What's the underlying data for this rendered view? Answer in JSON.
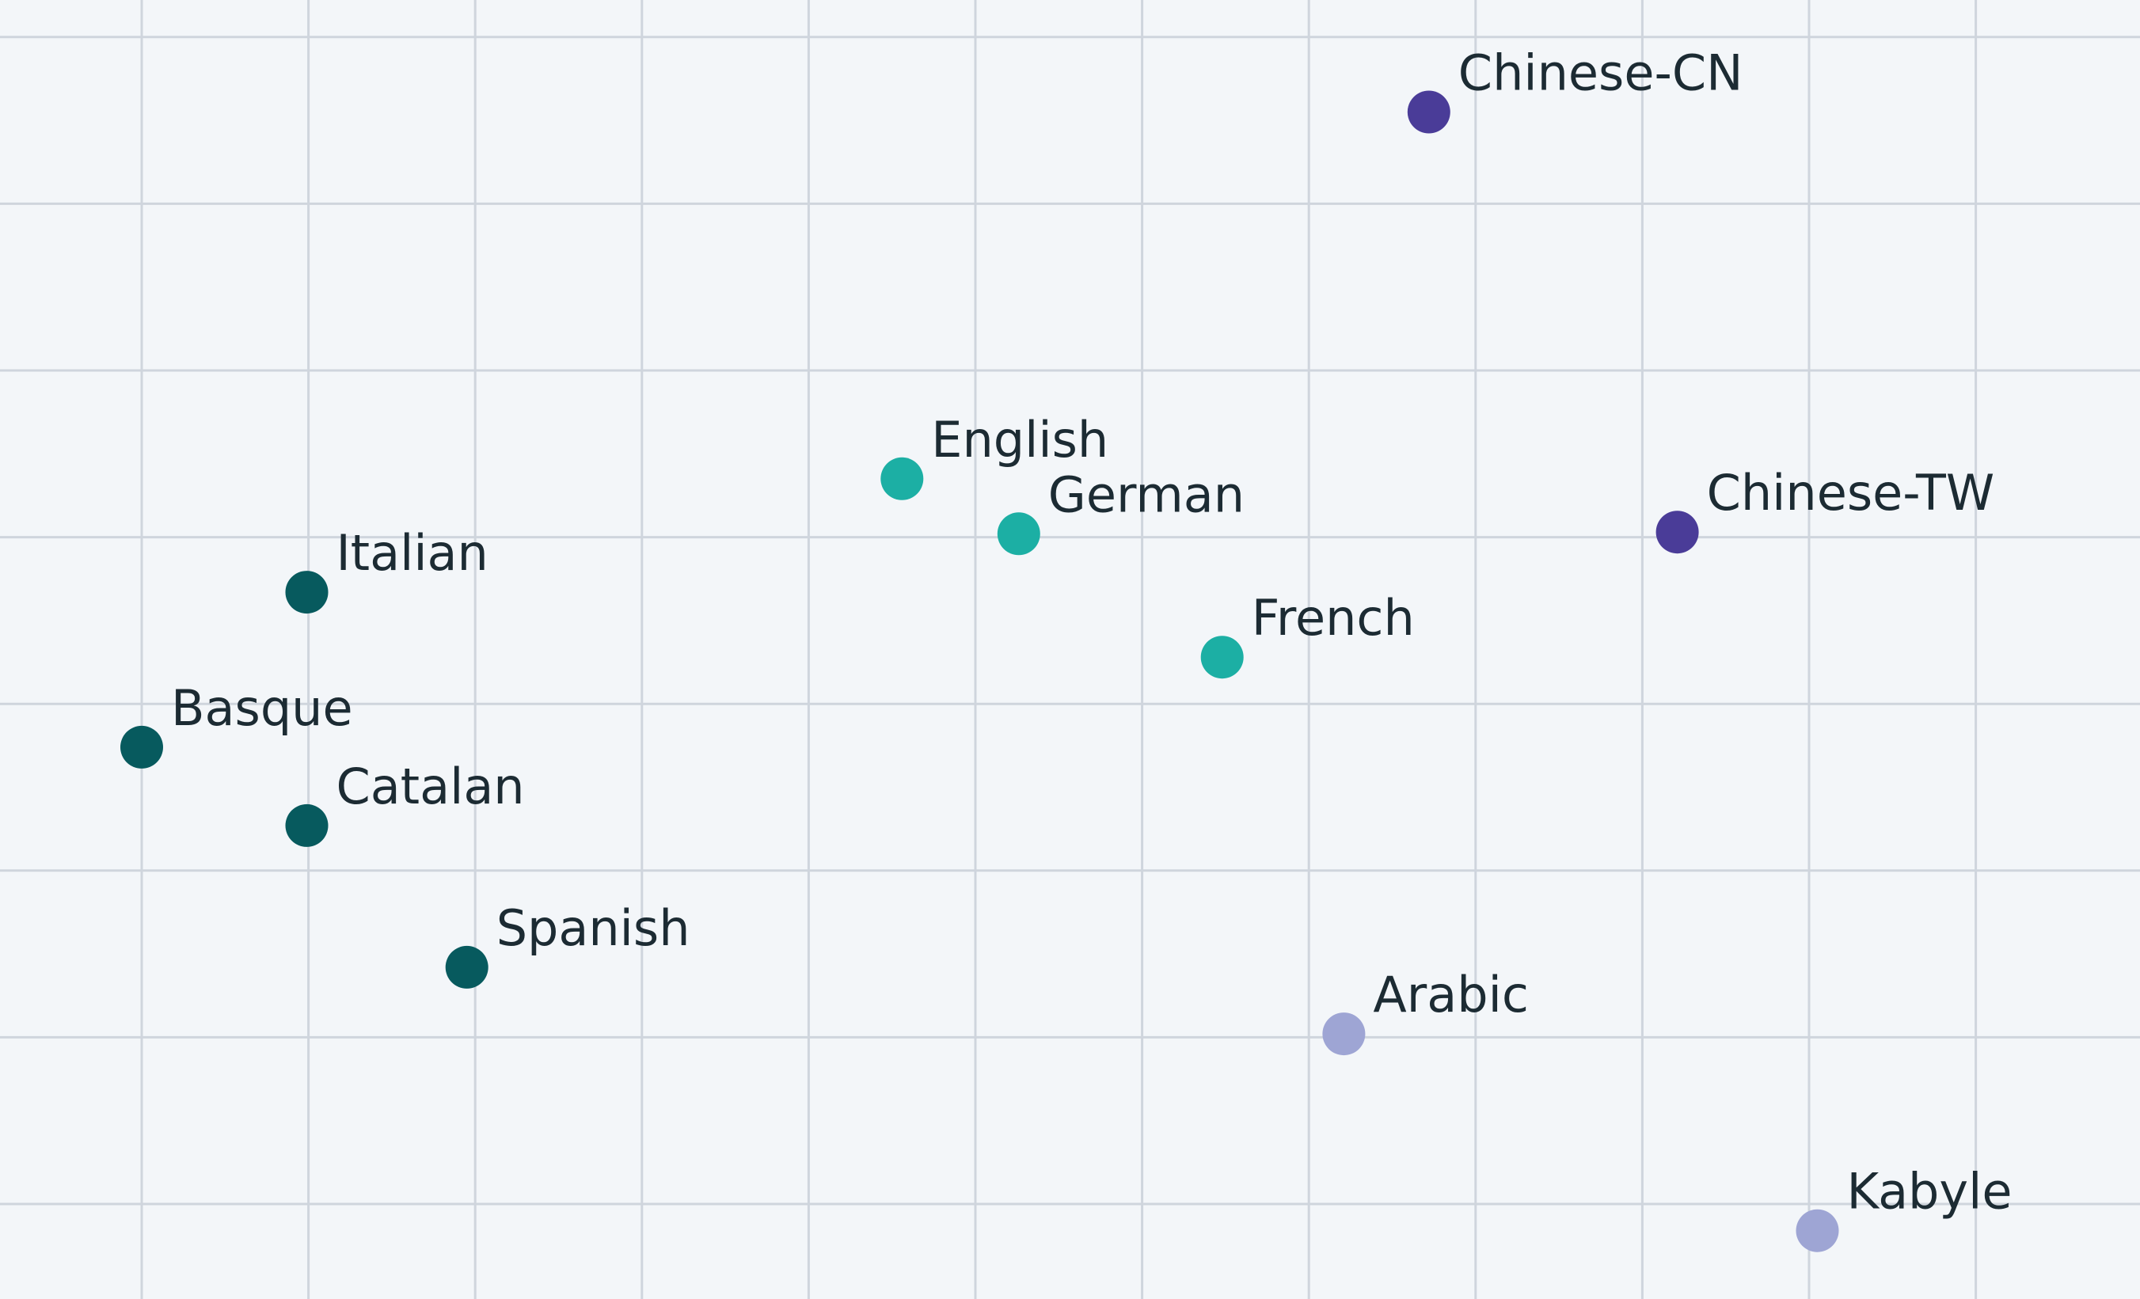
{
  "chart_data": {
    "type": "scatter",
    "title": "",
    "xlabel": "",
    "ylabel": "",
    "grid": true,
    "legend": "none",
    "xlim": [
      0,
      12.85
    ],
    "ylim": [
      0,
      7.8
    ],
    "groups": {
      "romance_basque": "#075a5e",
      "western_european": "#1cafa4",
      "chinese": "#4a3c98",
      "afroasiatic": "#9ea5d4"
    },
    "points": [
      {
        "label": "Chinese-CN",
        "x": 8.57,
        "y": 7.12,
        "group": "chinese"
      },
      {
        "label": "English",
        "x": 5.41,
        "y": 4.92,
        "group": "western_european"
      },
      {
        "label": "German",
        "x": 6.11,
        "y": 4.59,
        "group": "western_european"
      },
      {
        "label": "Chinese-TW",
        "x": 10.06,
        "y": 4.6,
        "group": "chinese"
      },
      {
        "label": "Italian",
        "x": 1.84,
        "y": 4.24,
        "group": "romance_basque"
      },
      {
        "label": "French",
        "x": 7.33,
        "y": 3.85,
        "group": "western_european"
      },
      {
        "label": "Basque",
        "x": 0.85,
        "y": 3.31,
        "group": "romance_basque"
      },
      {
        "label": "Catalan",
        "x": 1.84,
        "y": 2.84,
        "group": "romance_basque"
      },
      {
        "label": "Spanish",
        "x": 2.8,
        "y": 1.99,
        "group": "romance_basque"
      },
      {
        "label": "Arabic",
        "x": 8.06,
        "y": 1.59,
        "group": "afroasiatic"
      },
      {
        "label": "Kabyle",
        "x": 10.9,
        "y": 0.41,
        "group": "afroasiatic"
      }
    ]
  }
}
